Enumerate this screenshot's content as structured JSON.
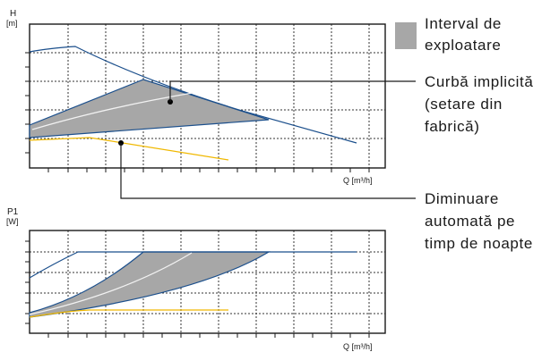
{
  "top_chart": {
    "y_axis_label": "H",
    "y_axis_unit": "[m]",
    "x_axis_label": "Q [m³/h]"
  },
  "bottom_chart": {
    "y_axis_label": "P1",
    "y_axis_unit": "[W]",
    "x_axis_label": "Q [m³/h]"
  },
  "legend": {
    "operating_range": [
      "Interval de",
      "exploatare"
    ],
    "default_curve": [
      "Curbă implicită",
      "(setare din",
      "fabrică)"
    ],
    "night_reduction": [
      "Diminuare",
      "automată pe",
      "timp de noapte"
    ]
  },
  "colors": {
    "frame": "#1a1a1a",
    "grid": "#333333",
    "curve_blue": "#1b4f8c",
    "range_fill": "#a7a7a7",
    "default_curve_line": "#f2f2f2",
    "night_curve_yellow": "#f0b800",
    "legend_swatch": "#a7a7a7",
    "leader_line": "#1a1a1a"
  }
}
